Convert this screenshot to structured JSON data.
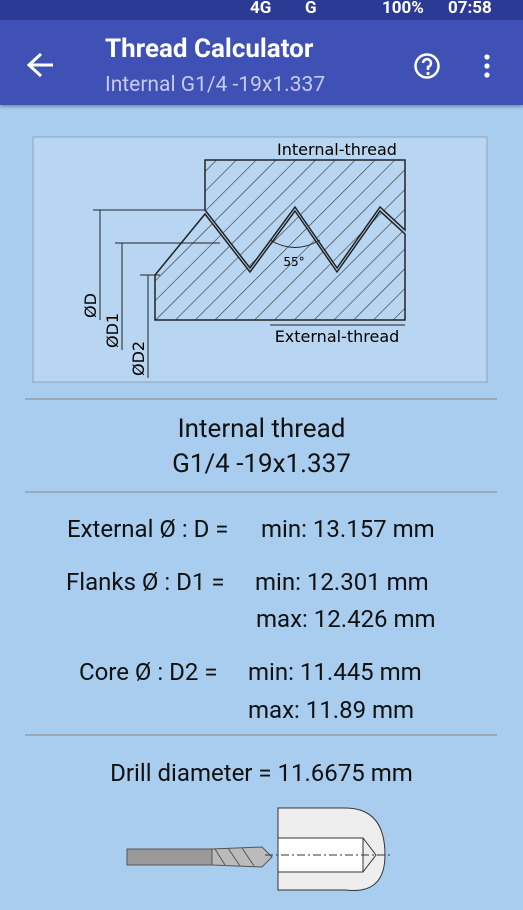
{
  "status_bar": {
    "network": "4G",
    "network2": "G",
    "battery": "100%",
    "time": "07:58"
  },
  "app_bar": {
    "title": "Thread Calculator",
    "subtitle": "Internal G1/4 -19x1.337"
  },
  "diagram": {
    "internal_label": "Internal-thread",
    "external_label": "External-thread",
    "angle": "55°",
    "d": "ØD",
    "d1": "ØD1",
    "d2": "ØD2"
  },
  "result": {
    "heading": "Internal thread",
    "designation": "G1/4 -19x1.337",
    "rows": [
      {
        "label": "External Ø : D =",
        "min": "min: 13.157 mm"
      },
      {
        "label": "Flanks Ø : D1 =",
        "min": "min: 12.301 mm",
        "max": "max: 12.426 mm"
      },
      {
        "label": "Core Ø : D2 =",
        "min": "min: 11.445 mm",
        "max": "max: 11.89 mm"
      }
    ],
    "drill": "Drill diameter = 11.6675 mm"
  }
}
